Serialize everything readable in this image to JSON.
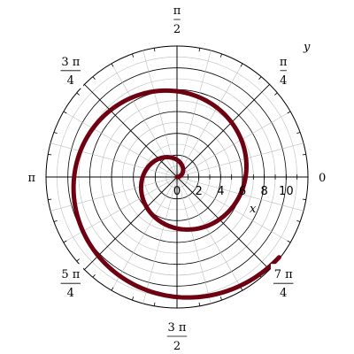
{
  "chart_data": {
    "type": "line",
    "coordinate_system": "polar",
    "title": "",
    "xlabel": "x",
    "ylabel": "y",
    "r_range": [
      0,
      12
    ],
    "r_ticks": [
      {
        "value": 0,
        "label": "0"
      },
      {
        "value": 2,
        "label": "2"
      },
      {
        "value": 4,
        "label": "4"
      },
      {
        "value": 6,
        "label": "6"
      },
      {
        "value": 8,
        "label": "8"
      },
      {
        "value": 10,
        "label": "10"
      }
    ],
    "angle_labels": [
      {
        "angle_deg": 0,
        "num": "0",
        "den": ""
      },
      {
        "angle_deg": 45,
        "num": "π",
        "den": "4"
      },
      {
        "angle_deg": 90,
        "num": "π",
        "den": "2"
      },
      {
        "angle_deg": 135,
        "num": "3 π",
        "den": "4"
      },
      {
        "angle_deg": 180,
        "num": "π",
        "den": ""
      },
      {
        "angle_deg": 225,
        "num": "5 π",
        "den": "4"
      },
      {
        "angle_deg": 270,
        "num": "3 π",
        "den": "2"
      },
      {
        "angle_deg": 315,
        "num": "7 π",
        "den": "4"
      }
    ],
    "grid": true,
    "series": [
      {
        "equation": "r = θ",
        "theta_range": [
          0,
          11.9
        ],
        "color": "#6e0011",
        "sample_points": [
          {
            "theta": 0,
            "r": 0
          },
          {
            "theta": 1.5708,
            "r": 1.5708
          },
          {
            "theta": 3.1416,
            "r": 3.1416
          },
          {
            "theta": 4.7124,
            "r": 4.7124
          },
          {
            "theta": 6.2832,
            "r": 6.2832
          },
          {
            "theta": 7.854,
            "r": 7.854
          },
          {
            "theta": 9.4248,
            "r": 9.4248
          },
          {
            "theta": 10.9956,
            "r": 10.9956
          },
          {
            "theta": 11.9,
            "r": 11.9
          }
        ]
      }
    ]
  }
}
